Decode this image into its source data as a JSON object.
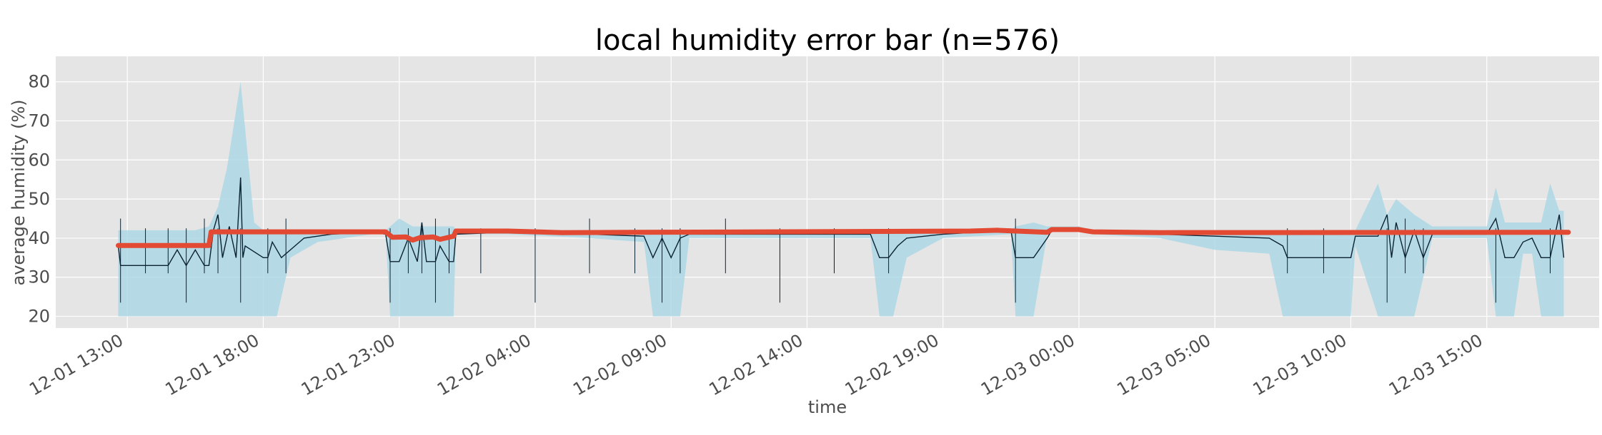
{
  "chart_data": {
    "type": "line",
    "title": "local humidity error bar (n=576)",
    "xlabel": "time",
    "ylabel": "average humidity (%)",
    "x_ticks": [
      "12-01 13:00",
      "12-01 18:00",
      "12-01 23:00",
      "12-02 04:00",
      "12-02 09:00",
      "12-02 14:00",
      "12-02 19:00",
      "12-03 00:00",
      "12-03 05:00",
      "12-03 10:00",
      "12-03 15:00"
    ],
    "y_ticks": [
      20,
      30,
      40,
      50,
      60,
      70,
      80
    ],
    "xlim": [
      "12-01 10:22",
      "12-03 19:08"
    ],
    "ylim": [
      17.0,
      86.5
    ],
    "grid": true,
    "colors": {
      "background": "#e5e5e5",
      "grid": "#ffffff",
      "band": "#add8e6",
      "line": "#0b2233",
      "marker": "#e24a33"
    },
    "series": [
      {
        "role": "mean",
        "style": "thick red dotted line",
        "x": [
          "12-01 12:40",
          "12-01 16:00",
          "12-01 16:05",
          "12-01 22:30",
          "12-01 22:45",
          "12-01 23:15",
          "12-01 23:30",
          "12-01 23:45",
          "12-02 00:15",
          "12-02 00:30",
          "12-02 01:00",
          "12-02 01:05",
          "12-02 03:00",
          "12-02 05:00",
          "12-02 20:00",
          "12-02 21:00",
          "12-02 22:50",
          "12-02 23:00",
          "12-03 00:00",
          "12-03 00:30",
          "12-03 03:00",
          "12-03 18:00"
        ],
        "y": [
          38.1,
          38.1,
          41.6,
          41.6,
          40.2,
          40.3,
          39.5,
          40.1,
          40.3,
          39.7,
          40.5,
          41.8,
          41.8,
          41.4,
          41.8,
          42.0,
          41.5,
          42.2,
          42.2,
          41.6,
          41.4,
          41.5
        ]
      },
      {
        "role": "median",
        "style": "thin dark line",
        "x": [
          "12-01 12:40",
          "12-01 12:45",
          "12-01 14:30",
          "12-01 14:50",
          "12-01 15:10",
          "12-01 15:30",
          "12-01 15:50",
          "12-01 16:00",
          "12-01 16:10",
          "12-01 16:20",
          "12-01 16:30",
          "12-01 16:45",
          "12-01 17:00",
          "12-01 17:10",
          "12-01 17:15",
          "12-01 17:20",
          "12-01 18:00",
          "12-01 18:10",
          "12-01 18:20",
          "12-01 18:40",
          "12-01 19:30",
          "12-01 20:30",
          "12-01 22:00",
          "12-01 22:30",
          "12-01 22:40",
          "12-01 23:00",
          "12-01 23:20",
          "12-01 23:40",
          "12-01 23:50",
          "12-02 00:00",
          "12-02 00:20",
          "12-02 00:30",
          "12-02 00:50",
          "12-02 01:00",
          "12-02 01:05",
          "12-02 03:00",
          "12-02 06:00",
          "12-02 08:00",
          "12-02 08:20",
          "12-02 08:40",
          "12-02 09:00",
          "12-02 09:20",
          "12-02 09:40",
          "12-02 14:00",
          "12-02 16:20",
          "12-02 16:40",
          "12-02 17:00",
          "12-02 17:20",
          "12-02 17:40",
          "12-02 19:00",
          "12-02 21:30",
          "12-02 21:40",
          "12-02 22:20",
          "12-02 22:50",
          "12-02 23:00",
          "12-03 00:00",
          "12-03 00:30",
          "12-03 03:00",
          "12-03 05:00",
          "12-03 07:00",
          "12-03 07:30",
          "12-03 07:40",
          "12-03 10:00",
          "12-03 10:10",
          "12-03 11:00",
          "12-03 11:20",
          "12-03 11:30",
          "12-03 11:40",
          "12-03 12:00",
          "12-03 12:20",
          "12-03 12:40",
          "12-03 13:00",
          "12-03 13:20",
          "12-03 15:00",
          "12-03 15:20",
          "12-03 15:40",
          "12-03 16:00",
          "12-03 16:20",
          "12-03 16:40",
          "12-03 17:00",
          "12-03 17:20",
          "12-03 17:40",
          "12-03 17:50"
        ],
        "y": [
          38.0,
          33.0,
          33.0,
          37.0,
          33.0,
          37.0,
          33.0,
          33.0,
          42.0,
          46.0,
          35.0,
          43.0,
          35.0,
          55.5,
          35.0,
          38.0,
          35.0,
          35.0,
          39.0,
          35.0,
          40.0,
          41.0,
          41.5,
          41.0,
          34.0,
          34.0,
          40.0,
          34.0,
          44.0,
          34.0,
          34.0,
          38.0,
          34.0,
          34.0,
          41.0,
          41.5,
          41.0,
          40.5,
          35.0,
          40.0,
          35.0,
          40.0,
          41.0,
          41.0,
          41.0,
          35.0,
          35.0,
          38.0,
          40.0,
          41.0,
          42.0,
          35.0,
          35.0,
          40.0,
          42.0,
          42.0,
          41.5,
          41.0,
          40.5,
          40.0,
          38.0,
          35.0,
          35.0,
          40.5,
          40.5,
          46.0,
          35.0,
          44.0,
          35.0,
          42.0,
          35.0,
          41.0,
          41.0,
          41.0,
          45.0,
          35.0,
          35.0,
          39.0,
          40.0,
          35.0,
          35.0,
          46.0,
          35.0
        ]
      },
      {
        "role": "error band",
        "style": "light blue filled area",
        "x": [
          "12-01 12:40",
          "12-01 14:30",
          "12-01 15:00",
          "12-01 15:30",
          "12-01 16:00",
          "12-01 16:20",
          "12-01 16:40",
          "12-01 17:10",
          "12-01 17:40",
          "12-01 18:00",
          "12-01 18:30",
          "12-01 19:00",
          "12-01 20:00",
          "12-01 21:00",
          "12-01 22:00",
          "12-01 22:30",
          "12-01 22:40",
          "12-01 23:00",
          "12-01 23:30",
          "12-02 00:00",
          "12-02 00:30",
          "12-02 01:00",
          "12-02 01:05",
          "12-02 03:00",
          "12-02 06:00",
          "12-02 08:00",
          "12-02 08:20",
          "12-02 08:50",
          "12-02 09:20",
          "12-02 09:40",
          "12-02 14:00",
          "12-02 16:20",
          "12-02 16:40",
          "12-02 17:10",
          "12-02 17:40",
          "12-02 19:00",
          "12-02 21:30",
          "12-02 21:40",
          "12-02 22:20",
          "12-02 22:50",
          "12-02 23:00",
          "12-03 00:00",
          "12-03 00:30",
          "12-03 03:00",
          "12-03 05:00",
          "12-03 07:00",
          "12-03 07:30",
          "12-03 09:00",
          "12-03 10:00",
          "12-03 10:10",
          "12-03 11:00",
          "12-03 11:20",
          "12-03 11:40",
          "12-03 12:00",
          "12-03 12:20",
          "12-03 13:00",
          "12-03 15:00",
          "12-03 15:20",
          "12-03 15:40",
          "12-03 16:00",
          "12-03 16:20",
          "12-03 16:40",
          "12-03 17:00",
          "12-03 17:20",
          "12-03 17:40",
          "12-03 17:50"
        ],
        "low": [
          20,
          20,
          20,
          20,
          20,
          20,
          20,
          20,
          20,
          20,
          20,
          35,
          39,
          40,
          41,
          41,
          20,
          20,
          20,
          20,
          20,
          20,
          41,
          41,
          40,
          39,
          20,
          20,
          20,
          40,
          40,
          40,
          20,
          20,
          35,
          40,
          41,
          20,
          20,
          41,
          42,
          42,
          41,
          40,
          37,
          36,
          20,
          20,
          20,
          38,
          20,
          20,
          20,
          20,
          20,
          40,
          40,
          20,
          20,
          20,
          36,
          36,
          20,
          20,
          20,
          20
        ],
        "high": [
          42,
          42,
          42,
          42,
          43,
          48,
          58,
          80,
          44,
          42,
          42,
          42,
          42,
          42,
          42,
          42,
          43,
          45,
          43,
          43,
          43,
          43,
          42,
          42,
          42,
          42,
          42,
          42,
          42,
          42,
          42,
          42,
          42,
          42,
          42,
          42,
          42,
          43,
          44,
          43,
          43,
          43,
          42,
          42,
          42,
          42,
          42,
          42,
          42,
          42,
          54,
          46,
          50,
          48,
          46,
          43,
          43,
          53,
          44,
          44,
          44,
          44,
          44,
          54,
          47,
          47
        ]
      }
    ]
  }
}
